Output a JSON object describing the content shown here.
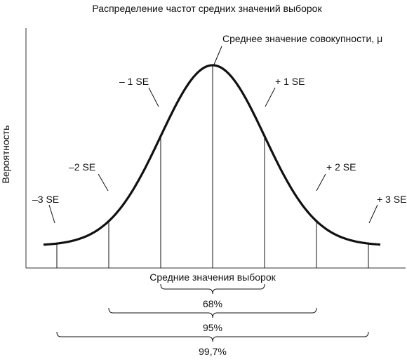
{
  "title": "Распределение частот средних значений выборок",
  "ylabel": "Вероятность",
  "mean_label": "Среднее значение совокупности, μ",
  "se_labels": {
    "minus3": "–3 SE",
    "minus2": "–2 SE",
    "minus1": "– 1 SE",
    "plus1": "+ 1 SE",
    "plus2": "+ 2 SE",
    "plus3": "+ 3 SE"
  },
  "xlabel": "Средние значения выборок",
  "intervals": [
    {
      "label": "68%",
      "from_se": -1,
      "to_se": 1
    },
    {
      "label": "95%",
      "from_se": -2,
      "to_se": 2
    },
    {
      "label": "99,7%",
      "from_se": -3,
      "to_se": 3
    }
  ]
}
